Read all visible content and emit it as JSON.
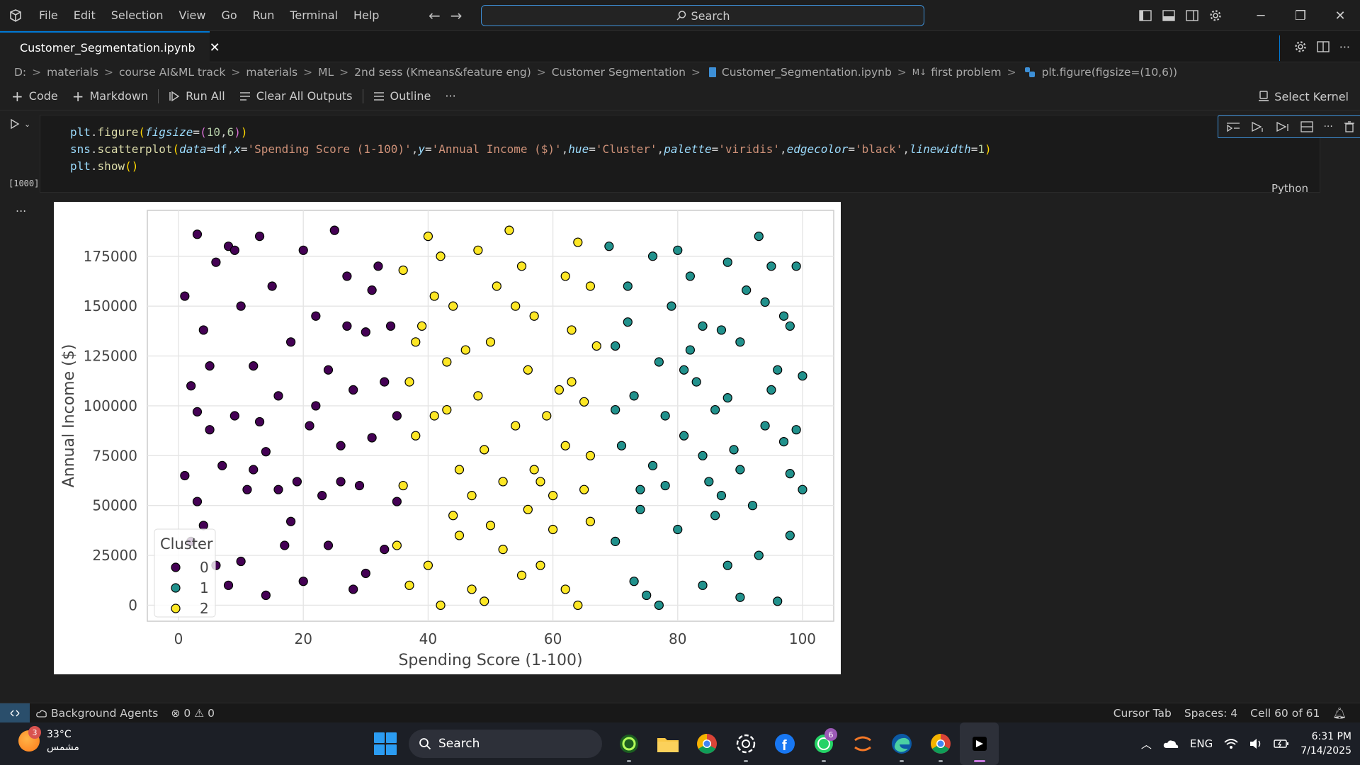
{
  "menu": [
    "File",
    "Edit",
    "Selection",
    "View",
    "Go",
    "Run",
    "Terminal",
    "Help"
  ],
  "search": {
    "label": "Search"
  },
  "tab": {
    "title": "Customer_Segmentation.ipynb"
  },
  "breadcrumb": [
    "D:",
    "materials",
    "course AI&ML track",
    "materials",
    "ML",
    "2nd sess (Kmeans&feature eng)",
    "Customer Segmentation",
    "Customer_Segmentation.ipynb",
    "first problem",
    "plt.figure(figsize=(10,6))"
  ],
  "breadcrumb_tail": {
    "md_prefix": "M↓"
  },
  "toolbar": {
    "code": "Code",
    "markdown": "Markdown",
    "run_all": "Run All",
    "clear_outputs": "Clear All Outputs",
    "outline": "Outline",
    "more": "···",
    "select_kernel": "Select Kernel"
  },
  "cell": {
    "exec_count": "[1000]",
    "language": "Python",
    "output_more": "..."
  },
  "statusbar": {
    "background_agents": "Background Agents",
    "errors": "0",
    "warnings": "0",
    "cursor_tab": "Cursor Tab",
    "spaces": "Spaces: 4",
    "cell_pos": "Cell 60 of 61"
  },
  "taskbar": {
    "weather_temp": "33°C",
    "weather_desc": "مشمس",
    "weather_badge": "3",
    "search": "Search",
    "whatsapp_badge": "6",
    "lang": "ENG",
    "time": "6:31 PM",
    "date": "7/14/2025"
  },
  "colors": {
    "accent": "#0078d4",
    "cluster0": "#440154",
    "cluster1": "#21918c",
    "cluster2": "#fde725"
  },
  "chart_data": {
    "type": "scatter",
    "title": "",
    "xlabel": "Spending Score (1-100)",
    "ylabel": "Annual Income ($)",
    "xlim": [
      -5,
      105
    ],
    "ylim": [
      -8000,
      198000
    ],
    "xticks": [
      "0",
      "20",
      "40",
      "60",
      "80",
      "100"
    ],
    "xtick_values": [
      0,
      20,
      40,
      60,
      80,
      100
    ],
    "yticks": [
      "0",
      "25000",
      "50000",
      "75000",
      "100000",
      "125000",
      "150000",
      "175000"
    ],
    "ytick_values": [
      0,
      25000,
      50000,
      75000,
      100000,
      125000,
      150000,
      175000
    ],
    "grid": true,
    "legend": {
      "title": "Cluster",
      "position": "lower-left",
      "entries": [
        "0",
        "1",
        "2"
      ]
    },
    "series": [
      {
        "name": "0",
        "color": "#440154",
        "x_range": [
          0,
          35
        ],
        "points": [
          [
            1,
            65
          ],
          [
            3,
            52
          ],
          [
            5,
            88
          ],
          [
            2,
            110
          ],
          [
            4,
            138
          ],
          [
            1,
            155
          ],
          [
            6,
            172
          ],
          [
            3,
            186
          ],
          [
            8,
            180
          ],
          [
            10,
            150
          ],
          [
            12,
            120
          ],
          [
            9,
            95
          ],
          [
            7,
            70
          ],
          [
            11,
            58
          ],
          [
            14,
            77
          ],
          [
            16,
            105
          ],
          [
            18,
            132
          ],
          [
            15,
            160
          ],
          [
            13,
            185
          ],
          [
            20,
            178
          ],
          [
            22,
            145
          ],
          [
            24,
            118
          ],
          [
            21,
            90
          ],
          [
            19,
            62
          ],
          [
            23,
            55
          ],
          [
            26,
            80
          ],
          [
            28,
            108
          ],
          [
            30,
            137
          ],
          [
            27,
            165
          ],
          [
            25,
            188
          ],
          [
            32,
            170
          ],
          [
            34,
            140
          ],
          [
            33,
            112
          ],
          [
            31,
            84
          ],
          [
            29,
            60
          ],
          [
            35,
            52
          ],
          [
            4,
            40
          ],
          [
            6,
            20
          ],
          [
            10,
            22
          ],
          [
            14,
            5
          ],
          [
            17,
            30
          ],
          [
            20,
            12
          ],
          [
            24,
            30
          ],
          [
            28,
            8
          ],
          [
            30,
            16
          ],
          [
            33,
            28
          ],
          [
            8,
            10
          ],
          [
            2,
            32
          ],
          [
            18,
            42
          ],
          [
            12,
            68
          ],
          [
            5,
            120
          ],
          [
            27,
            140
          ],
          [
            22,
            100
          ],
          [
            16,
            58
          ],
          [
            9,
            178
          ],
          [
            31,
            158
          ],
          [
            26,
            62
          ],
          [
            13,
            92
          ],
          [
            3,
            97
          ],
          [
            35,
            95
          ]
        ]
      },
      {
        "name": "1",
        "color": "#21918c",
        "x_range": [
          68,
          100
        ],
        "points": [
          [
            69,
            180
          ],
          [
            72,
            160
          ],
          [
            70,
            130
          ],
          [
            73,
            105
          ],
          [
            71,
            80
          ],
          [
            74,
            58
          ],
          [
            76,
            70
          ],
          [
            78,
            95
          ],
          [
            77,
            122
          ],
          [
            79,
            150
          ],
          [
            80,
            178
          ],
          [
            82,
            165
          ],
          [
            84,
            140
          ],
          [
            83,
            112
          ],
          [
            81,
            85
          ],
          [
            85,
            62
          ],
          [
            87,
            55
          ],
          [
            89,
            78
          ],
          [
            88,
            104
          ],
          [
            90,
            132
          ],
          [
            91,
            158
          ],
          [
            93,
            185
          ],
          [
            95,
            170
          ],
          [
            97,
            145
          ],
          [
            96,
            118
          ],
          [
            94,
            90
          ],
          [
            98,
            66
          ],
          [
            100,
            58
          ],
          [
            99,
            88
          ],
          [
            100,
            115
          ],
          [
            98,
            140
          ],
          [
            99,
            170
          ],
          [
            75,
            5
          ],
          [
            73,
            12
          ],
          [
            77,
            0
          ],
          [
            80,
            38
          ],
          [
            84,
            10
          ],
          [
            88,
            20
          ],
          [
            90,
            4
          ],
          [
            93,
            25
          ],
          [
            96,
            2
          ],
          [
            98,
            35
          ],
          [
            86,
            45
          ],
          [
            70,
            32
          ],
          [
            74,
            48
          ],
          [
            92,
            50
          ],
          [
            82,
            128
          ],
          [
            78,
            60
          ],
          [
            86,
            98
          ],
          [
            72,
            142
          ],
          [
            94,
            152
          ],
          [
            76,
            175
          ],
          [
            88,
            172
          ],
          [
            84,
            75
          ],
          [
            95,
            108
          ],
          [
            70,
            98
          ],
          [
            90,
            68
          ],
          [
            97,
            82
          ],
          [
            81,
            118
          ],
          [
            87,
            138
          ]
        ]
      },
      {
        "name": "2",
        "color": "#fde725",
        "x_range": [
          35,
          67
        ],
        "points": [
          [
            36,
            60
          ],
          [
            38,
            85
          ],
          [
            37,
            112
          ],
          [
            39,
            140
          ],
          [
            36,
            168
          ],
          [
            40,
            185
          ],
          [
            42,
            175
          ],
          [
            44,
            150
          ],
          [
            43,
            122
          ],
          [
            41,
            95
          ],
          [
            45,
            68
          ],
          [
            47,
            55
          ],
          [
            49,
            78
          ],
          [
            48,
            105
          ],
          [
            50,
            132
          ],
          [
            51,
            160
          ],
          [
            53,
            188
          ],
          [
            55,
            170
          ],
          [
            57,
            145
          ],
          [
            56,
            118
          ],
          [
            54,
            90
          ],
          [
            58,
            62
          ],
          [
            60,
            55
          ],
          [
            62,
            80
          ],
          [
            61,
            108
          ],
          [
            63,
            138
          ],
          [
            62,
            165
          ],
          [
            64,
            182
          ],
          [
            66,
            160
          ],
          [
            67,
            130
          ],
          [
            65,
            102
          ],
          [
            66,
            75
          ],
          [
            35,
            30
          ],
          [
            37,
            10
          ],
          [
            40,
            20
          ],
          [
            42,
            0
          ],
          [
            45,
            35
          ],
          [
            47,
            8
          ],
          [
            49,
            2
          ],
          [
            52,
            28
          ],
          [
            55,
            15
          ],
          [
            58,
            20
          ],
          [
            60,
            38
          ],
          [
            62,
            8
          ],
          [
            64,
            0
          ],
          [
            66,
            42
          ],
          [
            44,
            45
          ],
          [
            50,
            40
          ],
          [
            56,
            48
          ],
          [
            52,
            62
          ],
          [
            46,
            128
          ],
          [
            59,
            95
          ],
          [
            41,
            155
          ],
          [
            63,
            112
          ],
          [
            48,
            178
          ],
          [
            38,
            132
          ],
          [
            57,
            68
          ],
          [
            54,
            150
          ],
          [
            65,
            58
          ],
          [
            43,
            98
          ]
        ]
      }
    ]
  }
}
